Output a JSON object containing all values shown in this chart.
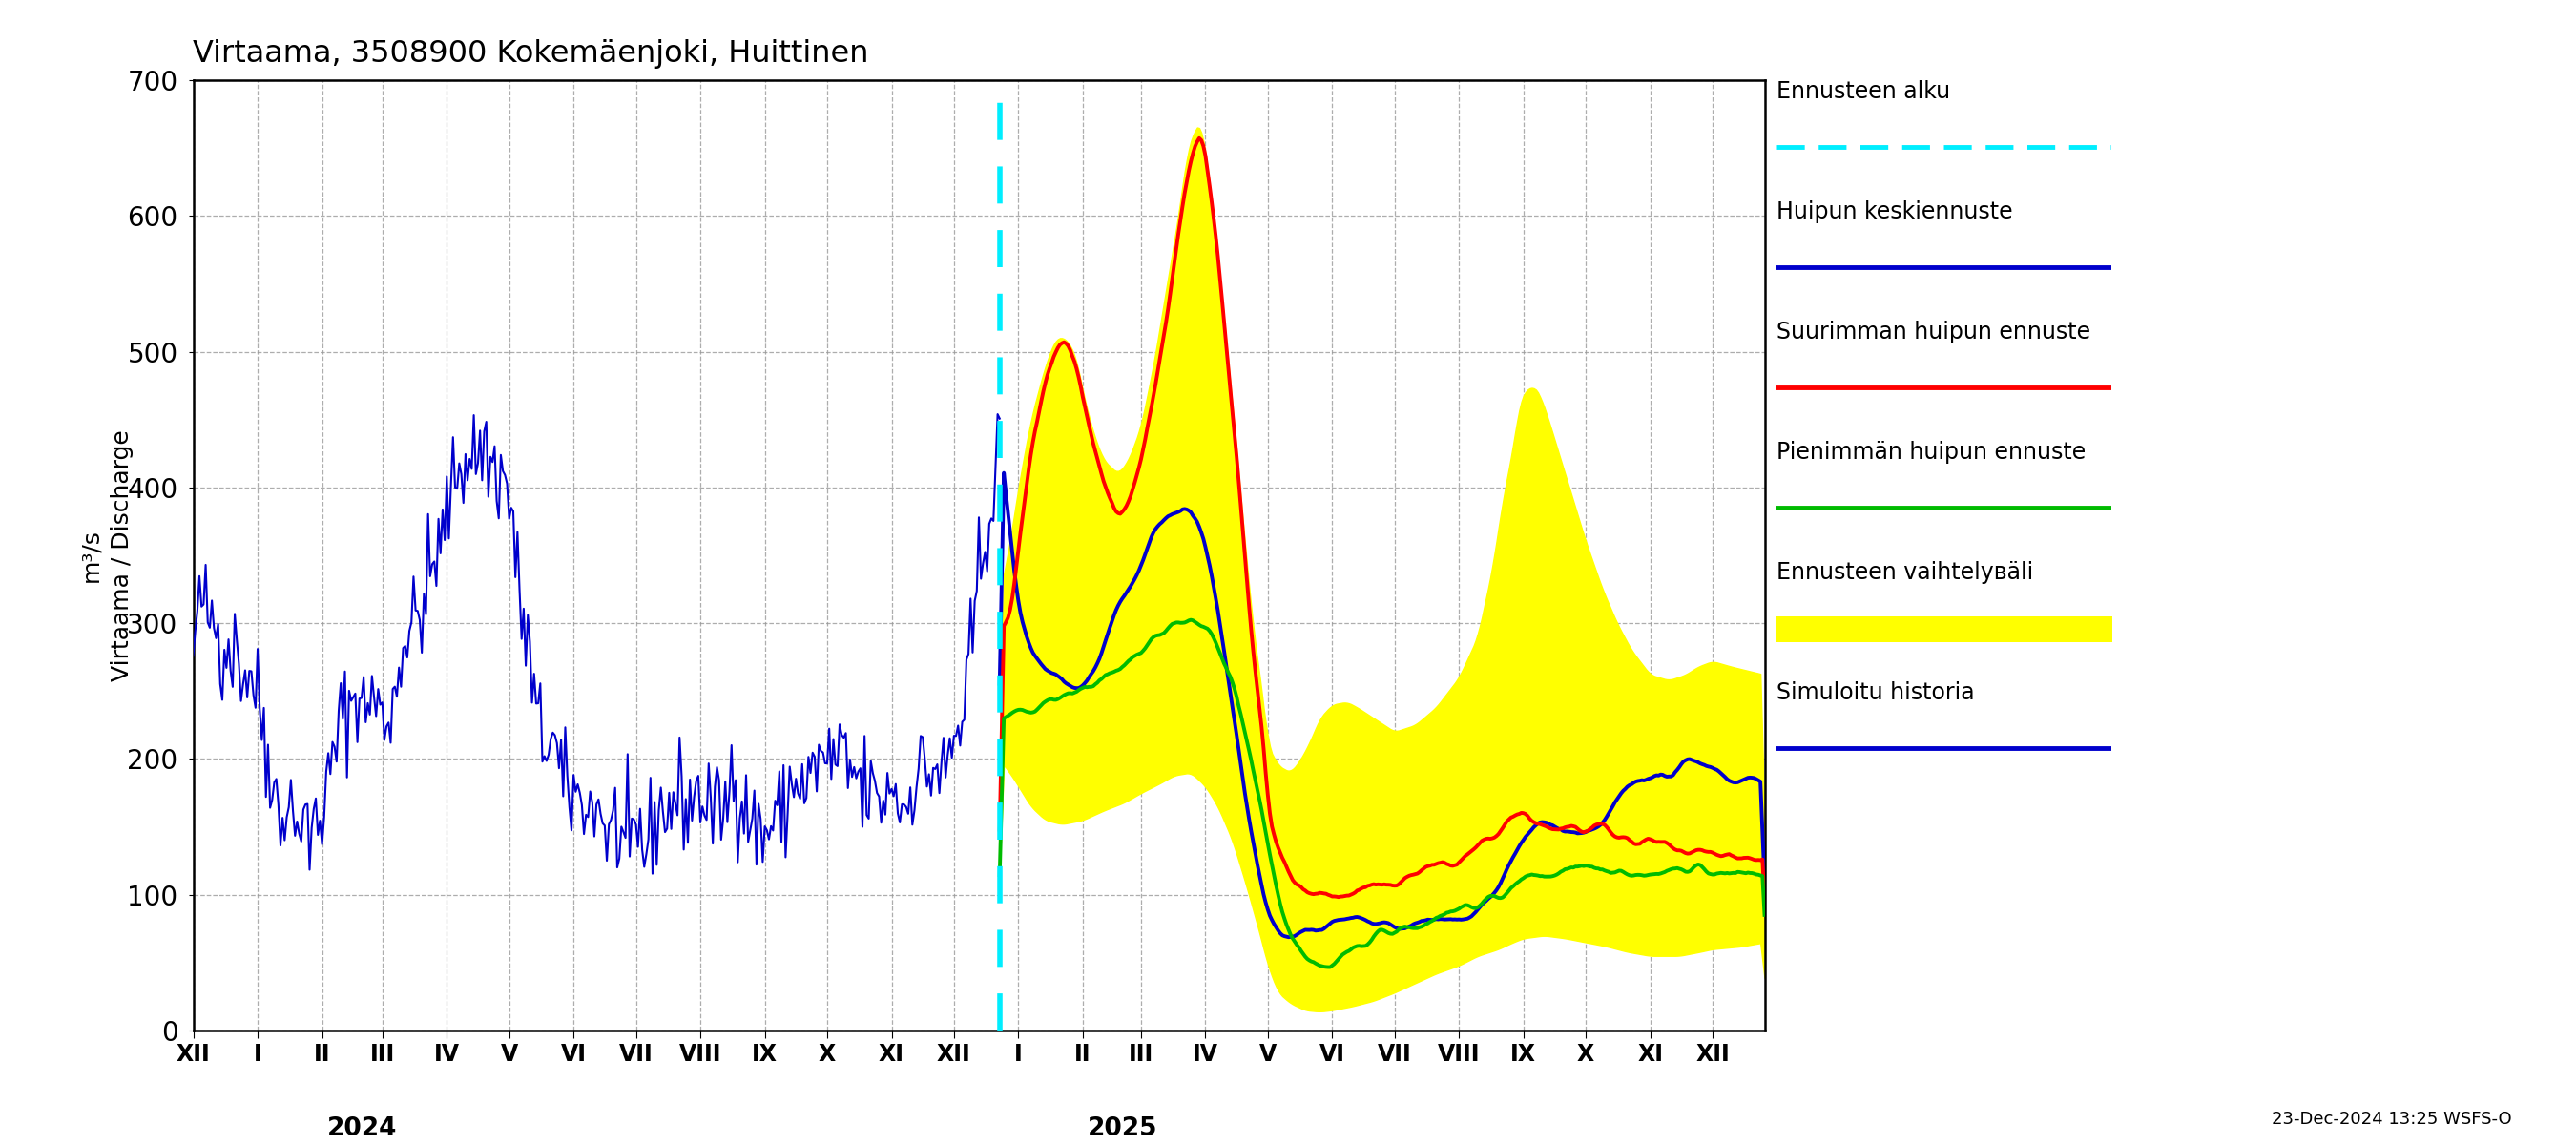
{
  "title": "Virtaama, 3508900 Kokemäenjoki, Huittinen",
  "ylabel1": "Virtaama / Discharge",
  "ylabel2": "m³/s",
  "footer": "23-Dec-2024 13:25 WSFS-O",
  "ylim": [
    0,
    700
  ],
  "yticks": [
    0,
    100,
    200,
    300,
    400,
    500,
    600,
    700
  ],
  "bg_color": "#ffffff",
  "grid_color": "#999999"
}
